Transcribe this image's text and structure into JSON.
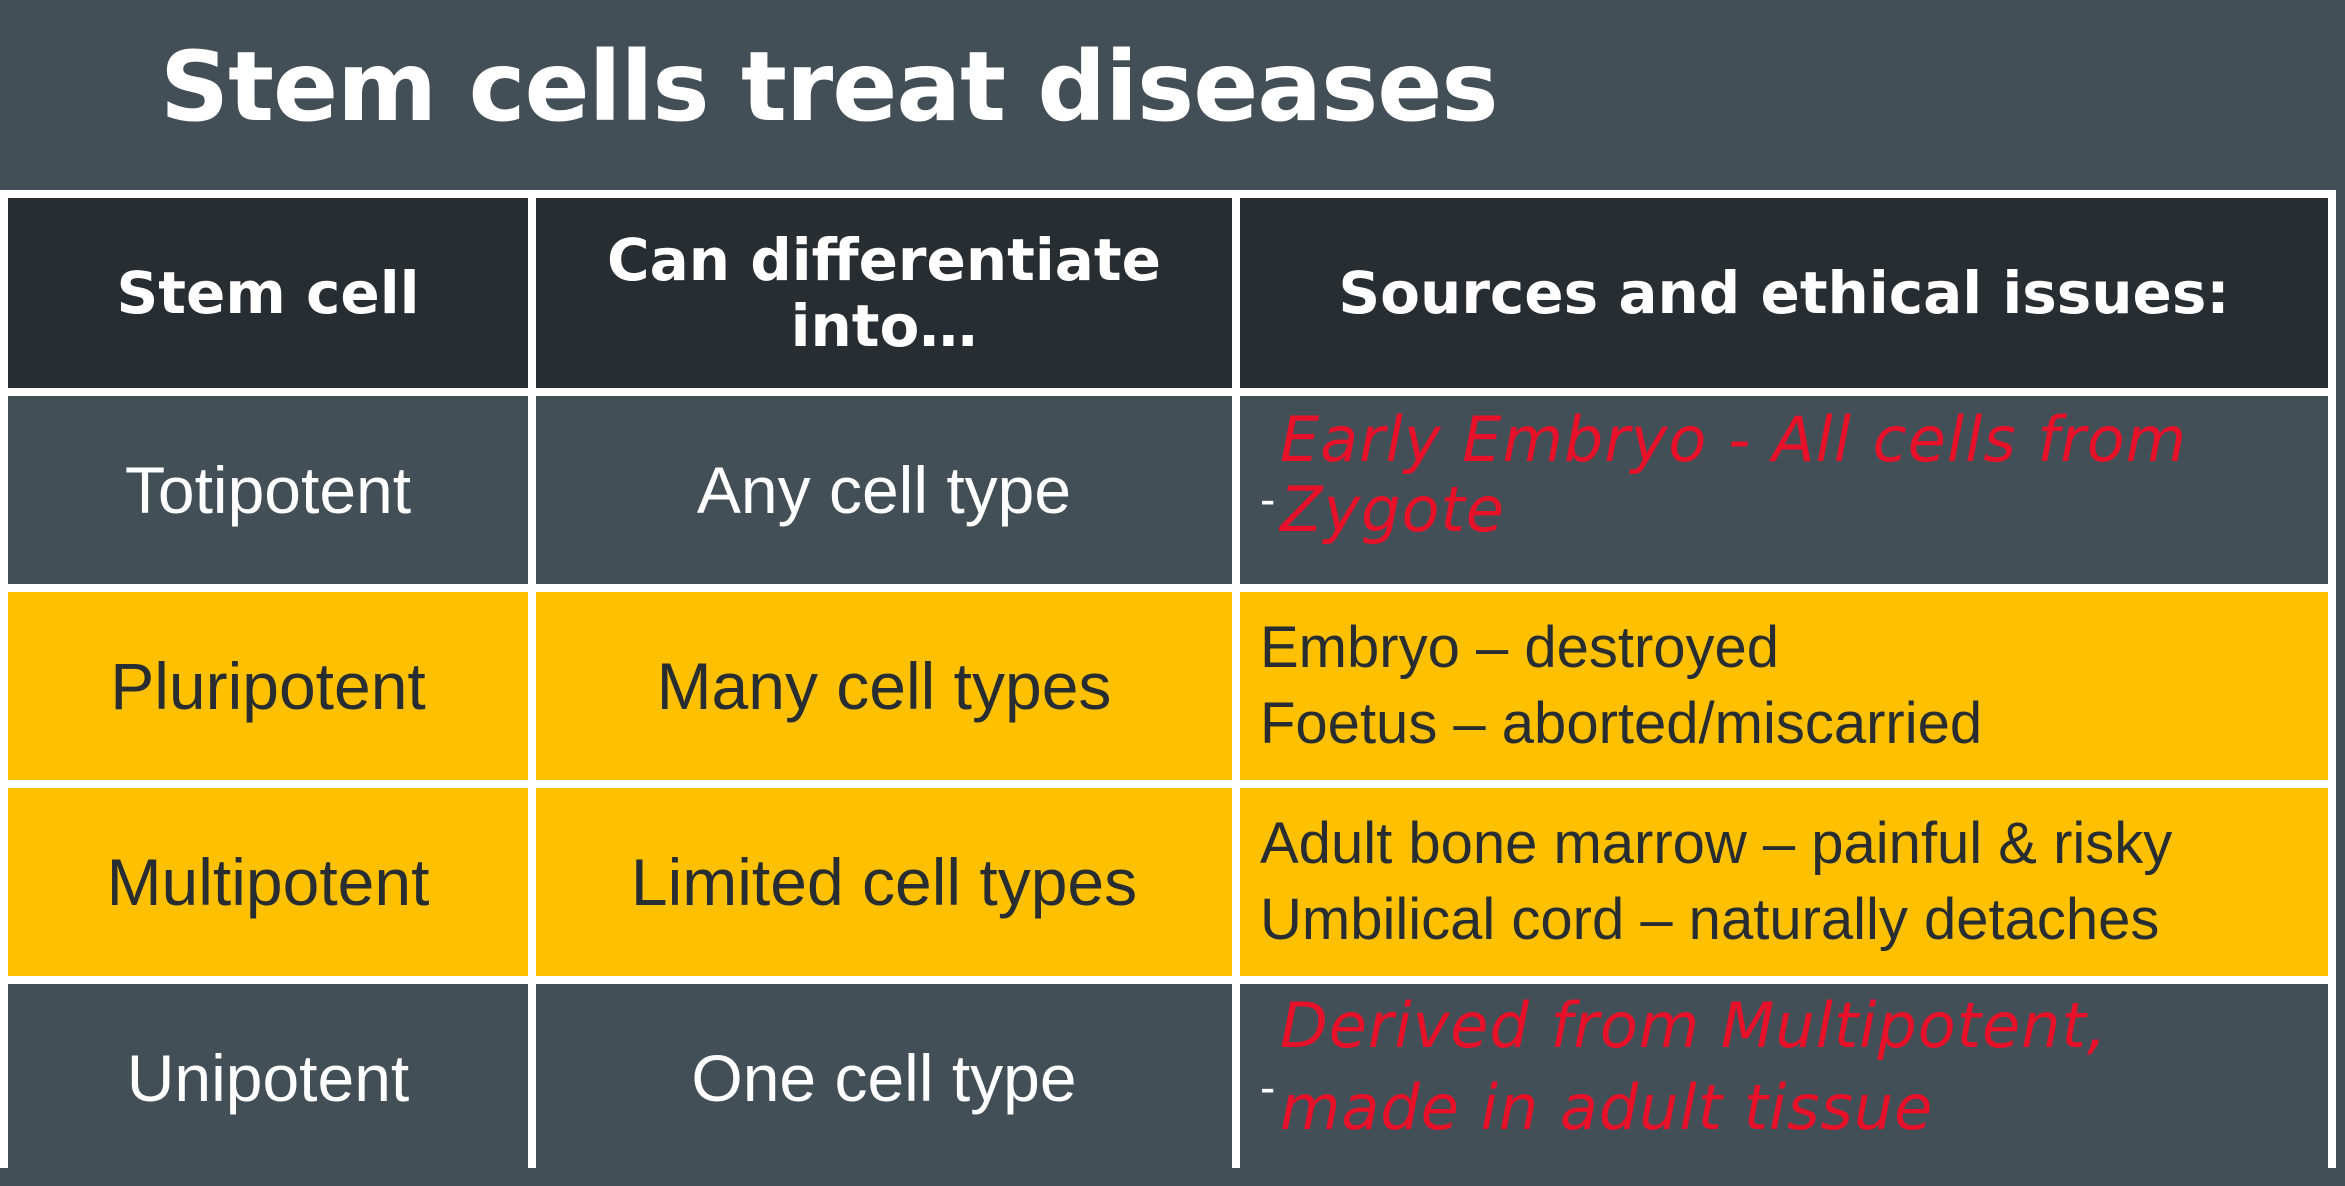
{
  "slide": {
    "title": "Stem cells treat diseases"
  },
  "table": {
    "headers": {
      "col1": "Stem cell",
      "col2_line1": "Can differentiate",
      "col2_line2": "into…",
      "col3": "Sources and ethical issues:"
    },
    "rows": [
      {
        "stem_cell": "Totipotent",
        "differentiates": "Any cell type",
        "source_dash": "-",
        "handwritten": {
          "line1": "Early Embryo - All cells from",
          "line2": "Zygote"
        }
      },
      {
        "stem_cell": "Pluripotent",
        "differentiates": "Many cell types",
        "source_line1": "Embryo – destroyed",
        "source_line2": "Foetus – aborted/miscarried"
      },
      {
        "stem_cell": "Multipotent",
        "differentiates": "Limited cell types",
        "source_line1": "Adult bone marrow – painful & risky",
        "source_line2": "Umbilical cord – naturally detaches"
      },
      {
        "stem_cell": "Unipotent",
        "differentiates": "One cell type",
        "source_dash": "-",
        "handwritten": {
          "line1": "Derived from Multipotent,",
          "line2": "made in adult tissue"
        }
      }
    ]
  },
  "colors": {
    "background": "#434f57",
    "header": "#272d31",
    "highlight": "#ffc000",
    "handwriting": "#e8112a"
  }
}
